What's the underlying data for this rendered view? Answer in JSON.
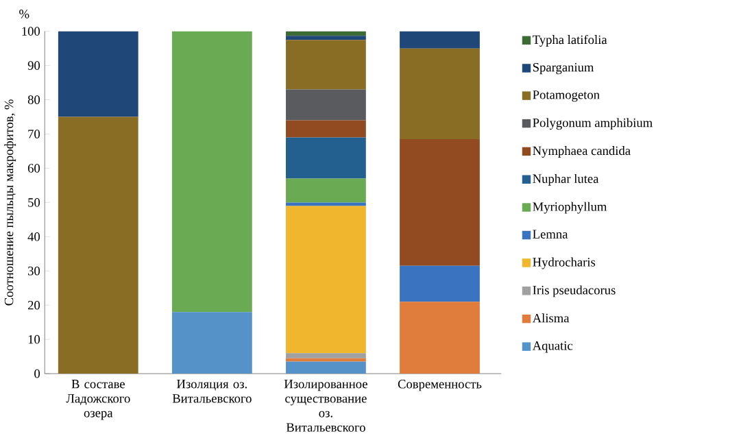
{
  "chart_data": {
    "type": "bar",
    "stacked": true,
    "ylabel": "Соотношение пыльцы макрофитов, %",
    "annotations": [
      "%"
    ],
    "categories": [
      "В составе Ладожского озера",
      "Изоляция оз. Витальевского",
      "Изолированное существование оз. Витальевского",
      "Современность"
    ],
    "ylim": [
      0,
      100
    ],
    "yticks": [
      0,
      10,
      20,
      30,
      40,
      50,
      60,
      70,
      80,
      90,
      100
    ],
    "legend": "right",
    "series": [
      {
        "name": "Aquatic",
        "color": "#5492c8",
        "values": [
          0,
          18,
          3.5,
          0
        ]
      },
      {
        "name": "Alisma",
        "color": "#e07c3c",
        "values": [
          0,
          0,
          1,
          21
        ]
      },
      {
        "name": "Iris pseudacorus",
        "color": "#a0a0a0",
        "values": [
          0,
          0,
          1.5,
          0
        ]
      },
      {
        "name": "Hydrocharis",
        "color": "#f0b62d",
        "values": [
          0,
          0,
          43,
          0
        ]
      },
      {
        "name": "Lemna",
        "color": "#3a73bf",
        "values": [
          0,
          0,
          1,
          10.5
        ]
      },
      {
        "name": "Myriophyllum",
        "color": "#6aaa52",
        "values": [
          0,
          82,
          7,
          0
        ]
      },
      {
        "name": "Nuphar lutea",
        "color": "#24608f",
        "values": [
          0,
          0,
          12,
          0
        ]
      },
      {
        "name": "Nymphaea candida",
        "color": "#924a20",
        "values": [
          0,
          0,
          5,
          37
        ]
      },
      {
        "name": "Polygonum amphibium",
        "color": "#595b5e",
        "values": [
          0,
          0,
          9,
          0
        ]
      },
      {
        "name": "Potamogeton",
        "color": "#8a6d25",
        "values": [
          75,
          0,
          14.5,
          26.5
        ]
      },
      {
        "name": "Sparganium",
        "color": "#1f4778",
        "values": [
          25,
          0,
          1.2,
          5
        ]
      },
      {
        "name": "Typha latifolia",
        "color": "#3d6b35",
        "values": [
          0,
          0,
          1.3,
          0
        ]
      }
    ]
  }
}
